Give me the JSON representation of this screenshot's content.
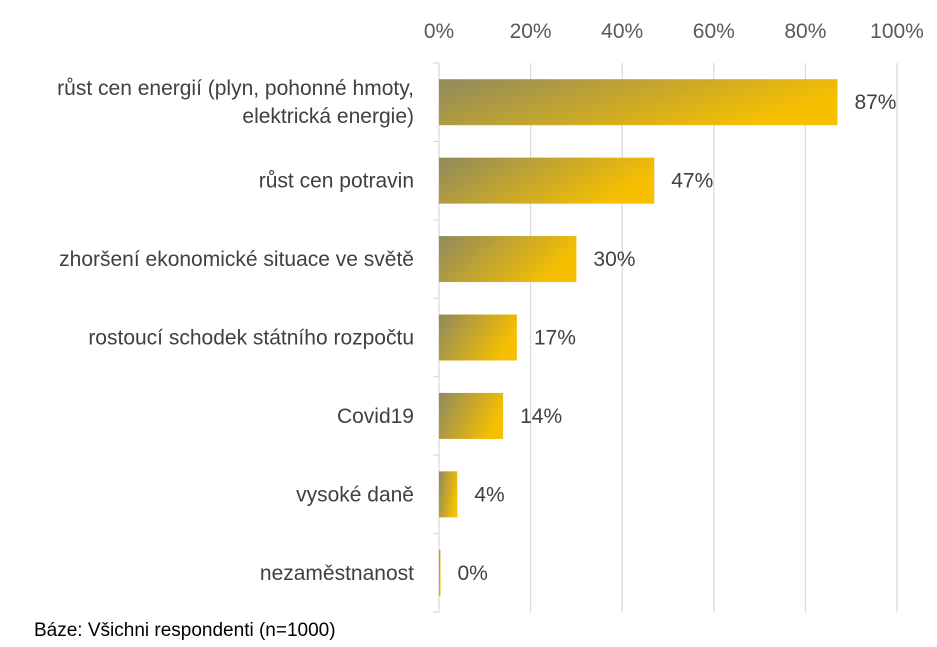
{
  "chart_data": {
    "type": "bar",
    "orientation": "horizontal",
    "categories": [
      [
        "růst cen energií (plyn, pohonné hmoty,",
        "elektrická energie)"
      ],
      [
        "růst cen potravin"
      ],
      [
        "zhoršení ekonomické situace ve světě"
      ],
      [
        "rostoucí schodek státního rozpočtu"
      ],
      [
        "Covid19"
      ],
      [
        "vysoké daně"
      ],
      [
        "nezaměstnanost"
      ]
    ],
    "values": [
      87,
      47,
      30,
      17,
      14,
      4,
      0
    ],
    "data_labels": [
      "87%",
      "47%",
      "30%",
      "17%",
      "14%",
      "4%",
      "0%"
    ],
    "x_ticks": [
      "0%",
      "20%",
      "40%",
      "60%",
      "80%",
      "100%"
    ],
    "xlim": [
      0,
      100
    ],
    "axis_position": "top",
    "grid": true,
    "colors": {
      "bar_start": "#8f8a5e",
      "bar_end": "#f6bf00",
      "grid": "#d9d9d9"
    }
  },
  "footnote": "Báze: Všichni respondenti (n=1000)"
}
